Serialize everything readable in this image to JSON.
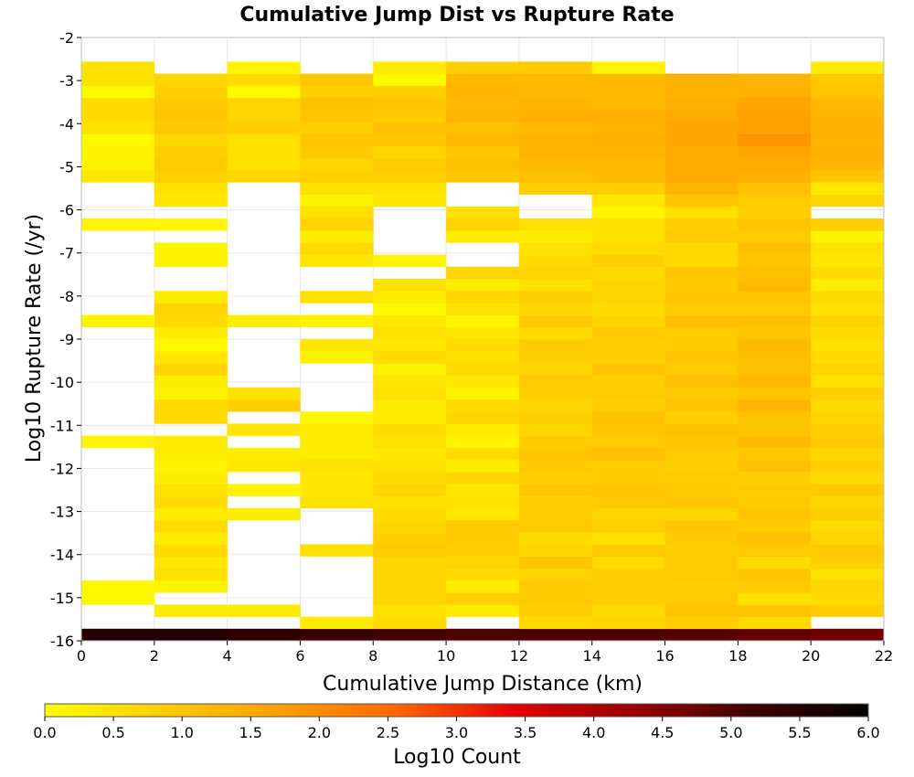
{
  "chart_data": {
    "type": "heatmap",
    "title": "Cumulative Jump Dist vs Rupture Rate",
    "xlabel": "Cumulative Jump Distance (km)",
    "ylabel": "Log10 Rupture Rate (/yr)",
    "xlim": [
      0,
      22
    ],
    "ylim": [
      -16,
      -2
    ],
    "x_ticks": [
      0,
      2,
      4,
      6,
      8,
      10,
      12,
      14,
      16,
      18,
      20,
      22
    ],
    "y_ticks": [
      -2,
      -3,
      -4,
      -5,
      -6,
      -7,
      -8,
      -9,
      -10,
      -11,
      -12,
      -13,
      -14,
      -15,
      -16
    ],
    "x_bin_width": 2,
    "y_bin_width": 0.28,
    "y_bin_start": -16,
    "grid": true,
    "colorbar": {
      "label": "Log10 Count",
      "min": 0,
      "max": 6,
      "ticks": [
        "0.0",
        "0.5",
        "1.0",
        "1.5",
        "2.0",
        "2.5",
        "3.0",
        "3.5",
        "4.0",
        "4.5",
        "5.0",
        "5.5",
        "6.0"
      ],
      "gradient": [
        "#ffff00",
        "#ffcc00",
        "#ffa000",
        "#ff6600",
        "#e60000",
        "#990000",
        "#400000",
        "#000000"
      ]
    },
    "cells_by_x_bin": [
      [
        5.5,
        null,
        null,
        0.1,
        0.1,
        null,
        null,
        null,
        null,
        null,
        null,
        null,
        null,
        null,
        null,
        null,
        0.2,
        null,
        null,
        null,
        null,
        null,
        null,
        null,
        null,
        null,
        0.2,
        null,
        null,
        null,
        null,
        null,
        null,
        null,
        0.2,
        null,
        null,
        null,
        0.4,
        0.2,
        0.2,
        0.1,
        0.5,
        0.6,
        0.6,
        0.1,
        0.5,
        0.5
      ],
      [
        5.5,
        null,
        0.3,
        null,
        0.2,
        0.5,
        0.4,
        0.6,
        0.3,
        0.6,
        0.3,
        0.6,
        0.5,
        0.3,
        0.2,
        0.3,
        0.3,
        null,
        0.6,
        0.6,
        0.2,
        0.3,
        0.7,
        0.4,
        0.1,
        0.3,
        0.6,
        0.7,
        0.3,
        null,
        null,
        0.2,
        0.2,
        null,
        0.1,
        null,
        0.4,
        0.5,
        0.8,
        0.9,
        0.8,
        0.7,
        0.9,
        1.0,
        0.9,
        0.8,
        0.7,
        null
      ],
      [
        5.4,
        null,
        0.3,
        null,
        null,
        null,
        null,
        null,
        null,
        null,
        0.3,
        null,
        0.2,
        null,
        0.4,
        0.3,
        null,
        0.4,
        null,
        0.8,
        0.5,
        null,
        null,
        null,
        null,
        null,
        0.3,
        null,
        null,
        null,
        null,
        null,
        null,
        null,
        null,
        null,
        null,
        null,
        0.7,
        0.5,
        0.5,
        0.5,
        0.8,
        0.7,
        0.7,
        0.1,
        0.6,
        0.2
      ],
      [
        5.2,
        0.3,
        null,
        null,
        null,
        null,
        null,
        0.5,
        null,
        null,
        null,
        0.5,
        0.4,
        0.4,
        0.5,
        0.3,
        0.3,
        0.3,
        0.1,
        null,
        null,
        null,
        null,
        0.2,
        0.4,
        null,
        0.2,
        null,
        0.5,
        null,
        null,
        0.4,
        0.6,
        0.3,
        0.7,
        0.5,
        0.2,
        0.5,
        0.8,
        0.7,
        0.9,
        1.0,
        0.8,
        1.0,
        1.1,
        0.8,
        1.0,
        null
      ],
      [
        5.1,
        0.6,
        0.5,
        0.7,
        0.7,
        0.7,
        0.7,
        0.9,
        0.8,
        0.7,
        0.6,
        0.5,
        0.7,
        0.6,
        0.5,
        0.4,
        0.5,
        0.6,
        0.3,
        0.3,
        0.5,
        0.4,
        0.2,
        0.6,
        0.4,
        0.5,
        0.4,
        0.1,
        0.3,
        0.5,
        null,
        0.2,
        null,
        null,
        null,
        null,
        0.4,
        0.5,
        0.8,
        0.9,
        0.7,
        1.0,
        1.1,
        0.9,
        1.0,
        0.8,
        0.1,
        0.3
      ],
      [
        5.0,
        null,
        0.3,
        0.8,
        0.3,
        0.6,
        0.7,
        0.8,
        0.9,
        0.9,
        0.4,
        0.5,
        0.4,
        0.7,
        0.3,
        0.6,
        0.2,
        0.3,
        0.7,
        0.6,
        0.2,
        0.4,
        0.6,
        0.5,
        0.6,
        0.4,
        0.2,
        0.5,
        0.7,
        0.3,
        0.7,
        null,
        null,
        0.3,
        0.7,
        0.5,
        null,
        null,
        1.0,
        1.1,
        1.0,
        1.2,
        1.1,
        1.3,
        1.2,
        1.3,
        1.2,
        0.8
      ],
      [
        5.0,
        0.6,
        0.8,
        0.9,
        0.9,
        0.7,
        1.0,
        0.7,
        0.6,
        0.9,
        0.8,
        0.8,
        1.0,
        0.8,
        0.9,
        1.0,
        0.9,
        0.7,
        0.8,
        0.7,
        0.8,
        0.9,
        0.7,
        0.8,
        0.9,
        0.6,
        0.9,
        0.7,
        0.8,
        0.5,
        0.7,
        0.6,
        0.5,
        0.3,
        0.5,
        null,
        null,
        0.8,
        1.1,
        1.2,
        1.3,
        1.3,
        1.2,
        1.4,
        1.3,
        1.2,
        1.2,
        0.9
      ],
      [
        5.0,
        0.7,
        0.6,
        0.8,
        0.8,
        0.8,
        0.6,
        0.9,
        0.5,
        0.8,
        0.7,
        0.9,
        1.0,
        0.9,
        0.9,
        1.1,
        0.9,
        1.0,
        1.1,
        0.8,
        0.9,
        0.8,
        1.0,
        0.8,
        0.8,
        0.9,
        0.7,
        0.6,
        0.7,
        0.7,
        0.6,
        0.8,
        0.6,
        0.5,
        0.5,
        0.2,
        0.4,
        0.8,
        1.2,
        1.2,
        1.3,
        1.4,
        1.3,
        1.4,
        1.2,
        1.2,
        1.2,
        0.2
      ],
      [
        4.9,
        0.8,
        1.0,
        0.9,
        0.8,
        0.9,
        0.9,
        0.8,
        0.9,
        1.0,
        0.7,
        1.0,
        0.9,
        0.9,
        0.8,
        0.9,
        1.0,
        1.1,
        0.8,
        1.0,
        0.9,
        1.1,
        0.9,
        1.0,
        0.9,
        0.9,
        1.1,
        0.9,
        1.0,
        0.9,
        1.0,
        0.6,
        0.6,
        0.9,
        0.8,
        0.5,
        1.0,
        1.3,
        1.5,
        1.5,
        1.5,
        1.6,
        1.6,
        1.5,
        1.4,
        1.3,
        1.4,
        null
      ],
      [
        4.8,
        0.6,
        1.0,
        0.5,
        0.9,
        1.0,
        0.6,
        0.9,
        1.1,
        0.9,
        1.0,
        0.9,
        0.9,
        0.8,
        1.1,
        0.9,
        1.2,
        1.0,
        1.0,
        1.3,
        1.0,
        1.2,
        1.1,
        1.1,
        1.2,
        1.0,
        1.1,
        0.9,
        1.0,
        1.2,
        1.1,
        1.0,
        1.1,
        0.9,
        1.0,
        0.8,
        0.9,
        1.1,
        1.4,
        1.5,
        1.6,
        1.9,
        1.7,
        1.7,
        1.6,
        1.4,
        1.3,
        null
      ],
      [
        4.7,
        null,
        0.8,
        0.6,
        0.7,
        0.5,
        0.8,
        0.9,
        0.7,
        0.6,
        0.8,
        0.7,
        0.9,
        0.6,
        0.8,
        0.7,
        0.9,
        0.8,
        0.7,
        0.6,
        0.8,
        0.5,
        0.7,
        0.6,
        0.5,
        0.6,
        0.7,
        0.5,
        0.6,
        0.3,
        0.6,
        0.4,
        0.5,
        0.2,
        0.8,
        null,
        0.7,
        0.4,
        1.0,
        1.3,
        1.4,
        1.3,
        1.4,
        1.3,
        1.2,
        1.0,
        0.9,
        0.3
      ]
    ]
  }
}
